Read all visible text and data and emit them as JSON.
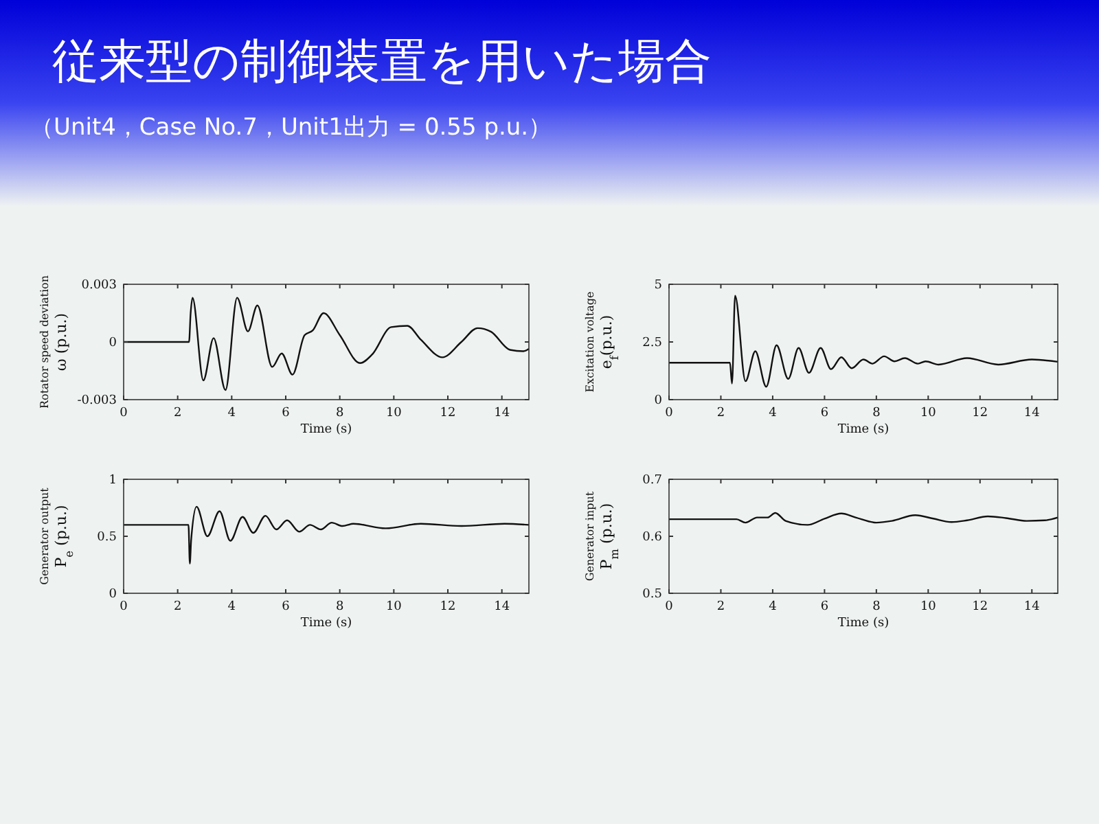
{
  "chart_data": [
    {
      "type": "line",
      "title": "従来型の制御装置を用いた場合",
      "subtitle": "（Unit4，Case No.7，Unit1出力 = 0.55 p.u.）",
      "xlabel": "Time (s)",
      "ylabel": "Rotator speed deviation\nω (p.u.)",
      "xlim": [
        0,
        15
      ],
      "xticks": [
        0,
        2,
        4,
        6,
        8,
        10,
        12,
        14
      ],
      "ylim": [
        -0.003,
        0.003
      ],
      "yticks": [
        -0.003,
        0,
        0.003
      ],
      "color": "#111111",
      "x": [
        0,
        1,
        2,
        2.42,
        2.48,
        2.55,
        2.95,
        3.33,
        3.77,
        4.2,
        4.6,
        4.95,
        5.5,
        5.85,
        6.25,
        6.7,
        7.0,
        7.4,
        8.0,
        8.75,
        9.2,
        9.9,
        10.5,
        11.0,
        11.8,
        12.5,
        13.1,
        13.6,
        14.3,
        14.8,
        15
      ],
      "values": [
        0,
        0,
        0,
        0,
        0.0015,
        0.0023,
        -0.002,
        0.0002,
        -0.0025,
        0.0023,
        0.00055,
        0.0019,
        -0.0013,
        -0.0006,
        -0.0017,
        0.00036,
        0.0006,
        0.0015,
        0.00036,
        -0.0011,
        -0.00065,
        0.00077,
        0.00084,
        0.00012,
        -0.0008,
        0,
        0.00072,
        0.00053,
        -0.00041,
        -0.00048,
        -0.00036
      ]
    },
    {
      "type": "line",
      "xlabel": "Time (s)",
      "ylabel": "Excitation voltage\ne$_{f}$(p.u.)",
      "xlim": [
        0,
        15
      ],
      "xticks": [
        0,
        2,
        4,
        6,
        8,
        10,
        12,
        14
      ],
      "ylim": [
        0,
        5
      ],
      "yticks": [
        0,
        2.5,
        5
      ],
      "color": "#111111",
      "x": [
        0,
        2.35,
        2.43,
        2.55,
        2.95,
        3.33,
        3.75,
        4.15,
        4.6,
        5.0,
        5.4,
        5.85,
        6.25,
        6.65,
        7.05,
        7.5,
        7.85,
        8.3,
        8.7,
        9.1,
        9.6,
        9.9,
        10.4,
        11.5,
        12.7,
        14.0,
        15
      ],
      "values": [
        1.6,
        1.6,
        0.7,
        4.5,
        0.8,
        2.1,
        0.56,
        2.36,
        0.9,
        2.24,
        1.16,
        2.24,
        1.32,
        1.84,
        1.36,
        1.74,
        1.56,
        1.88,
        1.66,
        1.8,
        1.56,
        1.66,
        1.52,
        1.8,
        1.52,
        1.74,
        1.64
      ]
    },
    {
      "type": "line",
      "xlabel": "Time (s)",
      "ylabel": "Generator output\nP$_{e}$ (p.u.)",
      "xlim": [
        0,
        15
      ],
      "xticks": [
        0,
        2,
        4,
        6,
        8,
        10,
        12,
        14
      ],
      "ylim": [
        0,
        1
      ],
      "yticks": [
        0,
        0.5,
        1
      ],
      "color": "#111111",
      "x": [
        0,
        2.4,
        2.45,
        2.5,
        2.7,
        3.1,
        3.55,
        3.95,
        4.4,
        4.8,
        5.25,
        5.65,
        6.05,
        6.5,
        6.9,
        7.3,
        7.7,
        8.1,
        8.5,
        9.7,
        11.0,
        12.5,
        14.1,
        15
      ],
      "values": [
        0.6,
        0.6,
        0.26,
        0.47,
        0.76,
        0.5,
        0.72,
        0.46,
        0.67,
        0.53,
        0.68,
        0.56,
        0.64,
        0.54,
        0.6,
        0.56,
        0.62,
        0.59,
        0.61,
        0.57,
        0.61,
        0.59,
        0.61,
        0.6
      ]
    },
    {
      "type": "line",
      "xlabel": "Time (s)",
      "ylabel": "Generator input\nP$_{m}$ (p.u.)",
      "xlim": [
        0,
        15
      ],
      "xticks": [
        0,
        2,
        4,
        6,
        8,
        10,
        12,
        14
      ],
      "ylim": [
        0.5,
        0.7
      ],
      "yticks": [
        0.5,
        0.6,
        0.7
      ],
      "color": "#111111",
      "x": [
        0,
        2.6,
        2.95,
        3.4,
        3.8,
        4.1,
        4.5,
        5.35,
        6.0,
        6.65,
        7.2,
        8.0,
        8.6,
        9.5,
        10.2,
        10.9,
        11.5,
        12.3,
        13.0,
        13.8,
        14.5,
        15
      ],
      "values": [
        0.63,
        0.63,
        0.624,
        0.633,
        0.633,
        0.641,
        0.627,
        0.62,
        0.631,
        0.64,
        0.633,
        0.624,
        0.627,
        0.637,
        0.631,
        0.625,
        0.628,
        0.635,
        0.632,
        0.627,
        0.628,
        0.633
      ]
    }
  ]
}
